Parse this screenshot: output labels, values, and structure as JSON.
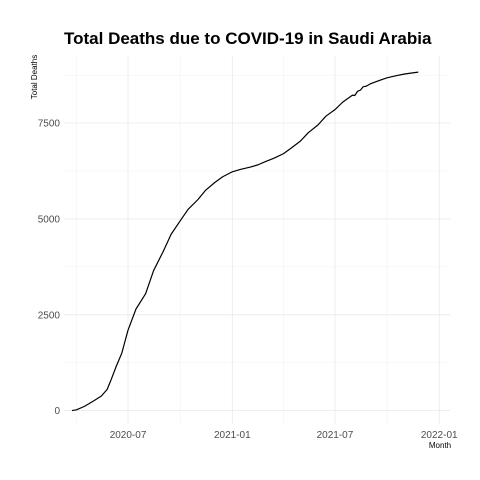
{
  "chart_data": {
    "type": "line",
    "title": "Total Deaths due to COVID-19 in Saudi Arabia",
    "xlabel": "Month",
    "ylabel": "Total Deaths",
    "xlim": [
      "2020-03-10",
      "2022-01-20"
    ],
    "ylim": [
      -350,
      9250
    ],
    "grid": true,
    "x_ticks": [
      {
        "value": "2020-07-01",
        "label": "2020-07"
      },
      {
        "value": "2021-01-01",
        "label": "2021-01"
      },
      {
        "value": "2021-07-01",
        "label": "2021-07"
      },
      {
        "value": "2022-01-01",
        "label": "2022-01"
      }
    ],
    "x_minor": [
      "2020-04-01",
      "2020-10-01",
      "2021-04-01",
      "2021-10-01"
    ],
    "y_ticks": [
      {
        "value": 0,
        "label": "0"
      },
      {
        "value": 2500,
        "label": "2500"
      },
      {
        "value": 5000,
        "label": "5000"
      },
      {
        "value": 7500,
        "label": "7500"
      }
    ],
    "y_minor": [
      1250,
      3750,
      6250,
      8750
    ],
    "series": [
      {
        "x": [
          "2020-03-24",
          "2020-04-01",
          "2020-04-15",
          "2020-05-01",
          "2020-05-15",
          "2020-05-25",
          "2020-06-01",
          "2020-06-10",
          "2020-06-20",
          "2020-07-01",
          "2020-07-15",
          "2020-08-01",
          "2020-08-15",
          "2020-09-01",
          "2020-09-15",
          "2020-10-01",
          "2020-10-15",
          "2020-11-01",
          "2020-11-15",
          "2020-12-01",
          "2020-12-15",
          "2021-01-01",
          "2021-01-15",
          "2021-02-01",
          "2021-02-15",
          "2021-03-01",
          "2021-03-15",
          "2021-04-01",
          "2021-04-15",
          "2021-05-01",
          "2021-05-15",
          "2021-06-01",
          "2021-06-15",
          "2021-07-01",
          "2021-07-15",
          "2021-08-01",
          "2021-08-05",
          "2021-08-10",
          "2021-08-15",
          "2021-08-20",
          "2021-08-25",
          "2021-09-01",
          "2021-09-08",
          "2021-09-15",
          "2021-10-01",
          "2021-10-15",
          "2021-11-01",
          "2021-11-15",
          "2021-11-25"
        ],
        "values": [
          0,
          20,
          110,
          250,
          380,
          550,
          800,
          1150,
          1500,
          2100,
          2650,
          3050,
          3650,
          4150,
          4600,
          4950,
          5250,
          5500,
          5750,
          5950,
          6100,
          6230,
          6290,
          6350,
          6410,
          6500,
          6580,
          6700,
          6850,
          7030,
          7250,
          7450,
          7680,
          7850,
          8050,
          8230,
          8220,
          8330,
          8360,
          8450,
          8460,
          8520,
          8560,
          8600,
          8680,
          8730,
          8780,
          8810,
          8830
        ]
      }
    ]
  }
}
